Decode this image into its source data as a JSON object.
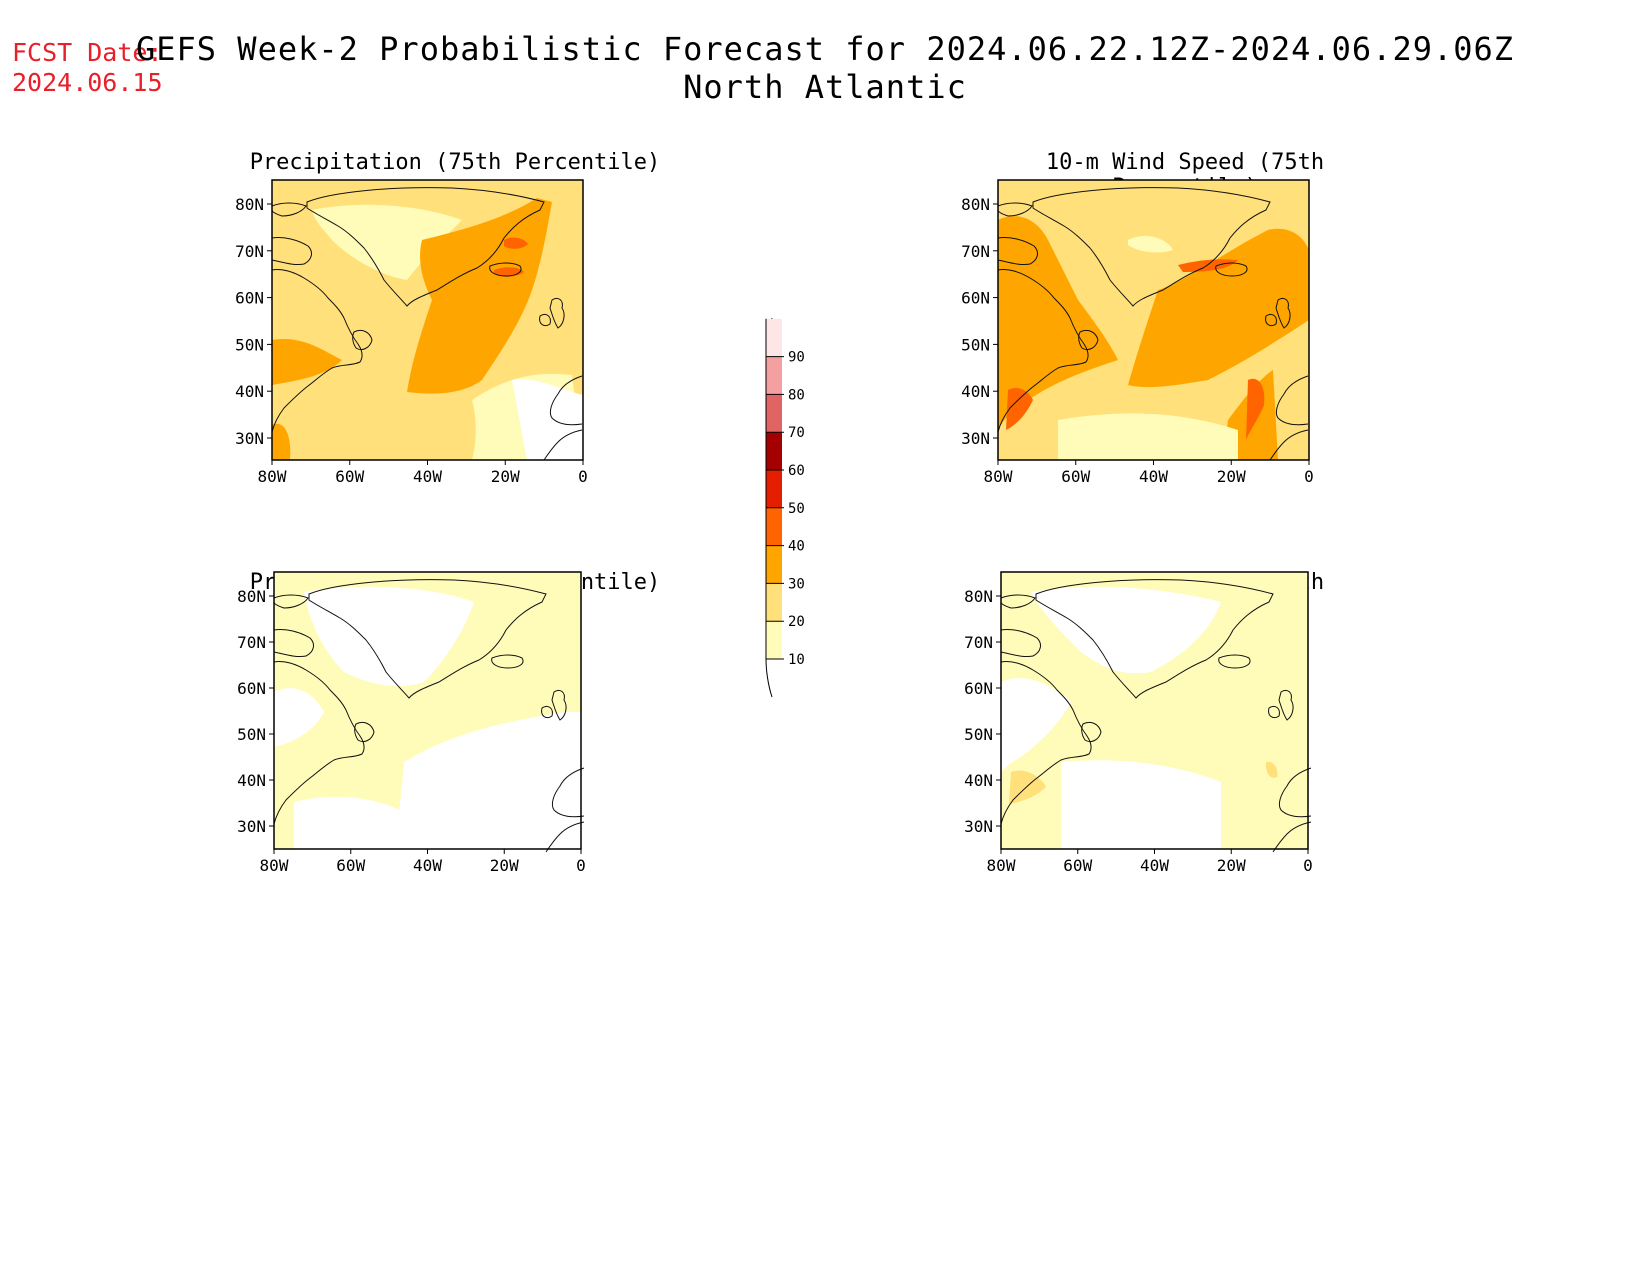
{
  "header": {
    "fcst_label": "FCST Date:",
    "fcst_date": "2024.06.15",
    "title_line1": "GEFS Week-2 Probabilistic Forecast for 2024.06.22.12Z-2024.06.29.06Z",
    "title_line2": "North Atlantic"
  },
  "panels": [
    {
      "id": "precip75",
      "title": "Precipitation (75th Percentile)"
    },
    {
      "id": "wind75",
      "title": "10-m Wind Speed (75th Percentile)"
    },
    {
      "id": "precip90",
      "title": "Precipitation (90th Percentile)"
    },
    {
      "id": "wind90",
      "title": "10-m Wind Speed (90th Percentile)"
    }
  ],
  "axes": {
    "lat_labels": [
      "80N",
      "70N",
      "60N",
      "50N",
      "40N",
      "30N"
    ],
    "lon_labels": [
      "80W",
      "60W",
      "40W",
      "20W",
      "0"
    ]
  },
  "colorbar": {
    "levels": [
      "10",
      "20",
      "30",
      "40",
      "50",
      "60",
      "70",
      "80",
      "90"
    ],
    "colors": [
      "#fffbb8",
      "#ffe07a",
      "#ffa500",
      "#ff6400",
      "#e61e00",
      "#a50000",
      "#e06464",
      "#f5a0a0",
      "#ffe6e6"
    ]
  }
}
